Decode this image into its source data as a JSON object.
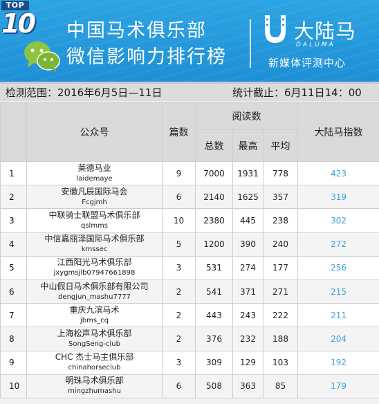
{
  "banner": {
    "badge_top": "TOP",
    "badge_num": "10",
    "title_line1": "中国马术俱乐部",
    "title_line2": "微信影响力排行榜",
    "brand_name": "大陆马",
    "brand_en": "DALUMA",
    "brand_sub": "新媒体评测中心"
  },
  "datebar": {
    "range": "检测范围：2016年6月5日—11日",
    "cutoff": "统计截止：6月11日14：00"
  },
  "table": {
    "headers": {
      "account": "公众号",
      "posts": "篇数",
      "reads": "阅读数",
      "total": "总数",
      "max": "最高",
      "avg": "平均",
      "index": "大陆马指数"
    },
    "rows": [
      {
        "rank": "1",
        "name": "莱德马业",
        "id": "laidemaye",
        "posts": "9",
        "total": "7000",
        "max": "1931",
        "avg": "778",
        "index": "423"
      },
      {
        "rank": "2",
        "name": "安徽凡辰国际马会",
        "id": "Fcgjmh",
        "posts": "6",
        "total": "2140",
        "max": "1625",
        "avg": "357",
        "index": "319"
      },
      {
        "rank": "3",
        "name": "中联骑士联盟马术俱乐部",
        "id": "qslmms",
        "posts": "10",
        "total": "2380",
        "max": "445",
        "avg": "238",
        "index": "302"
      },
      {
        "rank": "4",
        "name": "中信嘉丽泽国际马术俱乐部",
        "id": "kmssec",
        "posts": "5",
        "total": "1200",
        "max": "390",
        "avg": "240",
        "index": "272"
      },
      {
        "rank": "5",
        "name": "江西阳光马术俱乐部",
        "id": "jxygmsjlb07947661898",
        "posts": "3",
        "total": "531",
        "max": "274",
        "avg": "177",
        "index": "256"
      },
      {
        "rank": "6",
        "name": "中山假日马术俱乐部有限公司",
        "id": "dengjun_mashu7777",
        "posts": "2",
        "total": "541",
        "max": "371",
        "avg": "271",
        "index": "215"
      },
      {
        "rank": "7",
        "name": "重庆九滨马术",
        "id": "jbms_cq",
        "posts": "2",
        "total": "443",
        "max": "243",
        "avg": "222",
        "index": "211"
      },
      {
        "rank": "8",
        "name": "上海松声马术俱乐部",
        "id": "SongSeng-club",
        "posts": "2",
        "total": "376",
        "max": "232",
        "avg": "188",
        "index": "204"
      },
      {
        "rank": "9",
        "name": "CHC 杰士马主俱乐部",
        "id": "chinahorseclub",
        "posts": "3",
        "total": "309",
        "max": "129",
        "avg": "103",
        "index": "192"
      },
      {
        "rank": "10",
        "name": "明珠马术俱乐部",
        "id": "mingzhumashu",
        "posts": "6",
        "total": "508",
        "max": "363",
        "avg": "85",
        "index": "179"
      }
    ]
  },
  "colors": {
    "banner": "#1e8fd6",
    "index_text": "#3aa0d8"
  },
  "icons": [
    "top10-badge",
    "wechat-icon",
    "horseshoe-icon"
  ]
}
